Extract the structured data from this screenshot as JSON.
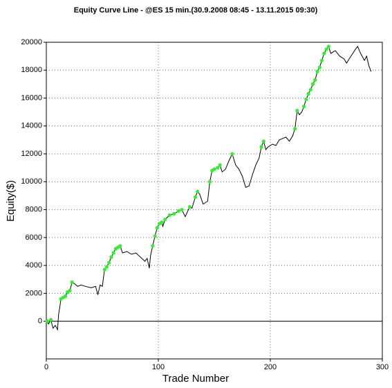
{
  "chart_data": {
    "type": "line",
    "title": "Equity Curve Line - @ES 15 min.(30.9.2008 08:45 - 13.11.2015 09:30)",
    "xlabel": "Trade Number",
    "ylabel": "Equity($)",
    "xlim": [
      0,
      300
    ],
    "ylim": [
      -2700,
      20000
    ],
    "xticks": [
      0,
      100,
      200,
      300
    ],
    "yticks": [
      0,
      2000,
      4000,
      6000,
      8000,
      10000,
      12000,
      14000,
      16000,
      18000,
      20000
    ],
    "grid": true,
    "line": {
      "color": "#000000",
      "x": [
        0,
        2,
        4,
        6,
        8,
        10,
        11,
        12,
        13,
        15,
        17,
        19,
        21,
        23,
        25,
        28,
        31,
        35,
        40,
        44,
        46,
        48,
        50,
        52,
        54,
        56,
        58,
        60,
        62,
        64,
        66,
        68,
        72,
        76,
        80,
        84,
        88,
        90,
        92,
        93,
        95,
        97,
        99,
        101,
        103,
        104,
        106,
        110,
        114,
        118,
        121,
        124,
        128,
        130,
        133,
        135,
        137,
        140,
        144,
        146,
        148,
        150,
        153,
        155,
        157,
        160,
        163,
        166,
        169,
        172,
        175,
        178,
        181,
        184,
        187,
        190,
        192,
        194,
        196,
        198,
        202,
        205,
        208,
        211,
        214,
        217,
        220,
        222,
        224,
        226,
        228,
        230,
        232,
        234,
        236,
        238,
        240,
        242,
        244,
        246,
        248,
        250,
        252,
        254,
        258,
        262,
        266,
        268,
        272,
        276,
        278,
        280,
        284,
        286,
        288,
        290
      ],
      "values": [
        0,
        -200,
        100,
        -500,
        -300,
        -600,
        500,
        1000,
        1600,
        1700,
        1800,
        2100,
        2200,
        2800,
        2700,
        2500,
        2600,
        2500,
        2400,
        2500,
        1900,
        2600,
        2500,
        3700,
        3900,
        4200,
        4600,
        4900,
        5200,
        5300,
        5400,
        4900,
        5000,
        4800,
        4900,
        4600,
        4300,
        4500,
        3800,
        4700,
        5400,
        6100,
        6700,
        7000,
        7100,
        6800,
        7300,
        7600,
        7700,
        7900,
        8000,
        7500,
        8200,
        8100,
        8900,
        9300,
        9100,
        8400,
        8600,
        10000,
        10800,
        10900,
        11000,
        11200,
        10700,
        10900,
        11500,
        12000,
        11200,
        10900,
        10400,
        9600,
        9700,
        10500,
        11200,
        11700,
        12500,
        12900,
        12300,
        12500,
        12700,
        12600,
        13000,
        13100,
        13200,
        12900,
        13300,
        13800,
        15100,
        14800,
        15000,
        15400,
        15900,
        16300,
        16600,
        17000,
        17300,
        17900,
        18200,
        18700,
        19200,
        19500,
        19700,
        19200,
        19400,
        19000,
        18800,
        18500,
        19000,
        19500,
        19700,
        19300,
        18700,
        19000,
        18300,
        17900
      ]
    },
    "markers": {
      "color": "#33ee33",
      "x": [
        1,
        4,
        13,
        15,
        17,
        19,
        21,
        23,
        52,
        54,
        56,
        58,
        60,
        62,
        64,
        66,
        95,
        97,
        99,
        101,
        103,
        106,
        110,
        114,
        118,
        121,
        128,
        133,
        135,
        146,
        148,
        150,
        153,
        155,
        166,
        192,
        194,
        222,
        224,
        230,
        232,
        234,
        236,
        238,
        240,
        242,
        244,
        246,
        248,
        250,
        252
      ],
      "values": [
        0,
        100,
        1600,
        1700,
        1800,
        2100,
        2200,
        2800,
        3700,
        3900,
        4200,
        4600,
        4900,
        5200,
        5300,
        5400,
        5400,
        6100,
        6700,
        7000,
        7100,
        7300,
        7600,
        7700,
        7900,
        8000,
        8200,
        8900,
        9300,
        10000,
        10800,
        10900,
        11000,
        11200,
        12000,
        12500,
        12900,
        13800,
        15100,
        15400,
        15900,
        16300,
        16600,
        17000,
        17300,
        17900,
        18200,
        18700,
        19200,
        19500,
        19700
      ]
    }
  }
}
